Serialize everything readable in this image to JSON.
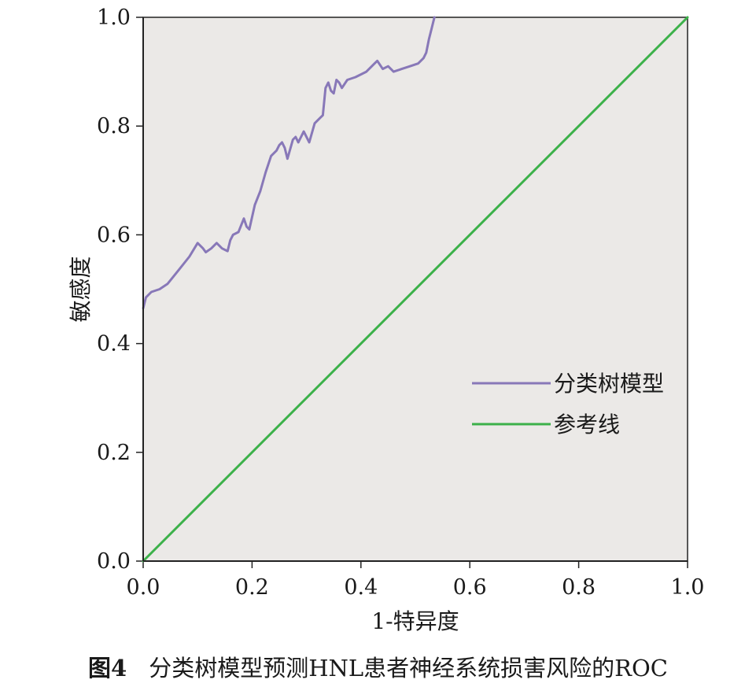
{
  "chart_data": {
    "type": "line",
    "xlabel": "1-特异度",
    "ylabel": "敏感度",
    "xlim": [
      0,
      1
    ],
    "ylim": [
      0,
      1
    ],
    "x_ticks": [
      "0.0",
      "0.2",
      "0.4",
      "0.6",
      "0.8",
      "1.0"
    ],
    "y_ticks": [
      "0.0",
      "0.2",
      "0.4",
      "0.6",
      "0.8",
      "1.0"
    ],
    "grid": false,
    "legend_position": "right",
    "background_color": "#ebe9e7",
    "series": [
      {
        "name": "分类树模型",
        "color": "#8878b8",
        "points": [
          [
            0.0,
            0.465
          ],
          [
            0.005,
            0.485
          ],
          [
            0.015,
            0.495
          ],
          [
            0.03,
            0.5
          ],
          [
            0.045,
            0.51
          ],
          [
            0.065,
            0.535
          ],
          [
            0.085,
            0.56
          ],
          [
            0.1,
            0.585
          ],
          [
            0.11,
            0.575
          ],
          [
            0.115,
            0.568
          ],
          [
            0.125,
            0.575
          ],
          [
            0.135,
            0.585
          ],
          [
            0.145,
            0.575
          ],
          [
            0.155,
            0.57
          ],
          [
            0.16,
            0.59
          ],
          [
            0.165,
            0.6
          ],
          [
            0.175,
            0.605
          ],
          [
            0.185,
            0.63
          ],
          [
            0.19,
            0.615
          ],
          [
            0.195,
            0.61
          ],
          [
            0.205,
            0.655
          ],
          [
            0.215,
            0.68
          ],
          [
            0.225,
            0.715
          ],
          [
            0.235,
            0.745
          ],
          [
            0.245,
            0.755
          ],
          [
            0.25,
            0.765
          ],
          [
            0.255,
            0.77
          ],
          [
            0.26,
            0.76
          ],
          [
            0.265,
            0.74
          ],
          [
            0.275,
            0.775
          ],
          [
            0.28,
            0.78
          ],
          [
            0.285,
            0.77
          ],
          [
            0.295,
            0.79
          ],
          [
            0.305,
            0.77
          ],
          [
            0.315,
            0.805
          ],
          [
            0.325,
            0.815
          ],
          [
            0.33,
            0.82
          ],
          [
            0.335,
            0.87
          ],
          [
            0.34,
            0.88
          ],
          [
            0.345,
            0.865
          ],
          [
            0.35,
            0.86
          ],
          [
            0.355,
            0.885
          ],
          [
            0.36,
            0.88
          ],
          [
            0.365,
            0.87
          ],
          [
            0.375,
            0.885
          ],
          [
            0.39,
            0.89
          ],
          [
            0.41,
            0.9
          ],
          [
            0.425,
            0.915
          ],
          [
            0.43,
            0.92
          ],
          [
            0.44,
            0.905
          ],
          [
            0.45,
            0.91
          ],
          [
            0.46,
            0.9
          ],
          [
            0.475,
            0.905
          ],
          [
            0.49,
            0.91
          ],
          [
            0.505,
            0.915
          ],
          [
            0.515,
            0.925
          ],
          [
            0.52,
            0.935
          ],
          [
            0.525,
            0.96
          ],
          [
            0.53,
            0.98
          ],
          [
            0.535,
            1.0
          ]
        ]
      },
      {
        "name": "参考线",
        "color": "#3cb14a",
        "points": [
          [
            0,
            0
          ],
          [
            1,
            1
          ]
        ]
      }
    ]
  },
  "caption": {
    "figure_number": "图4",
    "text": "分类树模型预测HNL患者神经系统损害风险的ROC"
  }
}
